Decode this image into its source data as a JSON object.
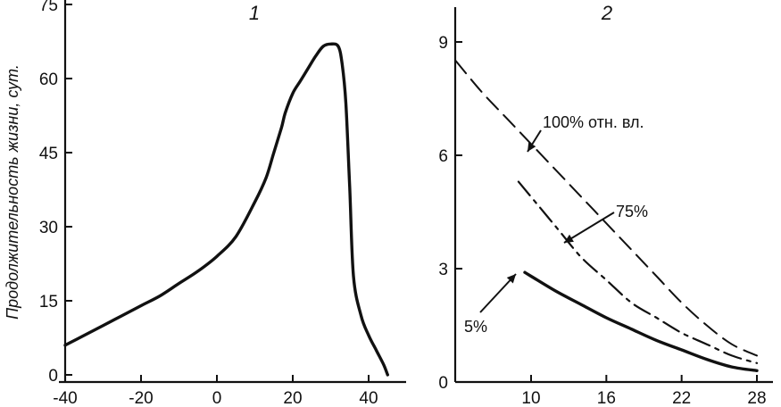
{
  "chart_data": [
    {
      "type": "line",
      "panel_label": "1",
      "ylabel": "Продолжительность жизни, сут.",
      "xlim": [
        -40,
        46
      ],
      "ylim": [
        0,
        75
      ],
      "x_ticks": [
        "-40",
        "-20",
        "0",
        "20",
        "40"
      ],
      "y_ticks": [
        "0",
        "15",
        "30",
        "45",
        "60",
        "75"
      ],
      "series": [
        {
          "style": "solid",
          "x": [
            -40,
            -35,
            -30,
            -25,
            -20,
            -15,
            -10,
            -5,
            0,
            5,
            10,
            13,
            15,
            17,
            18,
            20,
            22,
            24,
            26,
            28,
            30,
            32,
            33,
            34,
            35,
            36,
            38,
            40,
            42,
            44,
            45
          ],
          "y": [
            6,
            8,
            10,
            12,
            14,
            16,
            18.5,
            21,
            24,
            28,
            35,
            40,
            45,
            50,
            53,
            57,
            59.5,
            62,
            64.5,
            66.5,
            67,
            66.5,
            63,
            55,
            38,
            20,
            12,
            8,
            5,
            2,
            0
          ]
        }
      ]
    },
    {
      "type": "line",
      "panel_label": "2",
      "xlim": [
        4,
        29
      ],
      "ylim": [
        0,
        10
      ],
      "x_ticks": [
        "10",
        "16",
        "22",
        "28"
      ],
      "y_ticks": [
        "0",
        "3",
        "6",
        "9"
      ],
      "series": [
        {
          "name": "100% отн. вл.",
          "style": "dashed",
          "x": [
            4,
            6,
            8,
            10,
            12,
            14,
            16,
            18,
            20,
            22,
            24,
            26,
            28
          ],
          "y": [
            8.5,
            7.7,
            7.0,
            6.3,
            5.6,
            4.9,
            4.2,
            3.5,
            2.8,
            2.1,
            1.5,
            1.0,
            0.7
          ]
        },
        {
          "name": "75%",
          "style": "dashdot",
          "x": [
            9,
            10,
            12,
            14,
            16,
            18,
            20,
            22,
            24,
            26,
            28
          ],
          "y": [
            5.3,
            4.9,
            4.1,
            3.3,
            2.7,
            2.1,
            1.7,
            1.3,
            1.0,
            0.7,
            0.5
          ]
        },
        {
          "name": "5%",
          "style": "solid",
          "x": [
            9.5,
            10,
            12,
            14,
            16,
            18,
            20,
            22,
            24,
            26,
            28
          ],
          "y": [
            2.9,
            2.8,
            2.4,
            2.05,
            1.7,
            1.4,
            1.1,
            0.85,
            0.6,
            0.4,
            0.3
          ]
        }
      ]
    }
  ]
}
